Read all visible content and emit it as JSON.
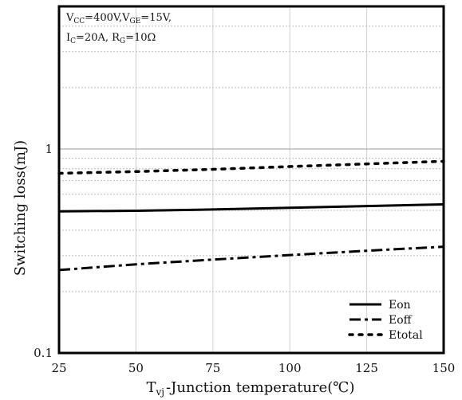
{
  "chart_data": {
    "type": "line",
    "xlabel": {
      "prefix": "T",
      "subscript": "vj",
      "rest": "-Junction temperature(℃)"
    },
    "ylabel": "Switching loss(mJ)",
    "xlim": [
      25,
      150
    ],
    "ylim": [
      0.1,
      5
    ],
    "y_scale": "log",
    "x_ticks": [
      25,
      50,
      75,
      100,
      125,
      150
    ],
    "x_tick_labels": [
      "25",
      "50",
      "75",
      "100",
      "125",
      "150"
    ],
    "y_ticks": [
      0.1,
      1
    ],
    "y_tick_labels": [
      "0.1",
      "1"
    ],
    "grid": true,
    "legend_position": "bottom-right",
    "conditions": {
      "line1": [
        {
          "base": "V",
          "sub": "CC",
          "text": "=400V,"
        },
        {
          "base": "V",
          "sub": "GE",
          "text": "=15V,"
        }
      ],
      "line2": [
        {
          "base": "I",
          "sub": "C",
          "text": "=20A,  "
        },
        {
          "base": "R",
          "sub": "G",
          "text": "=10Ω"
        }
      ]
    },
    "x": [
      25,
      50,
      75,
      100,
      125,
      150
    ],
    "series": [
      {
        "name": "Eon",
        "style": "solid",
        "values": [
          0.495,
          0.498,
          0.505,
          0.515,
          0.525,
          0.535
        ]
      },
      {
        "name": "Eoff",
        "style": "dash-dot",
        "values": [
          0.255,
          0.272,
          0.287,
          0.302,
          0.317,
          0.332
        ]
      },
      {
        "name": "Etotal",
        "style": "dotted",
        "values": [
          0.76,
          0.775,
          0.795,
          0.82,
          0.845,
          0.87
        ]
      }
    ]
  }
}
